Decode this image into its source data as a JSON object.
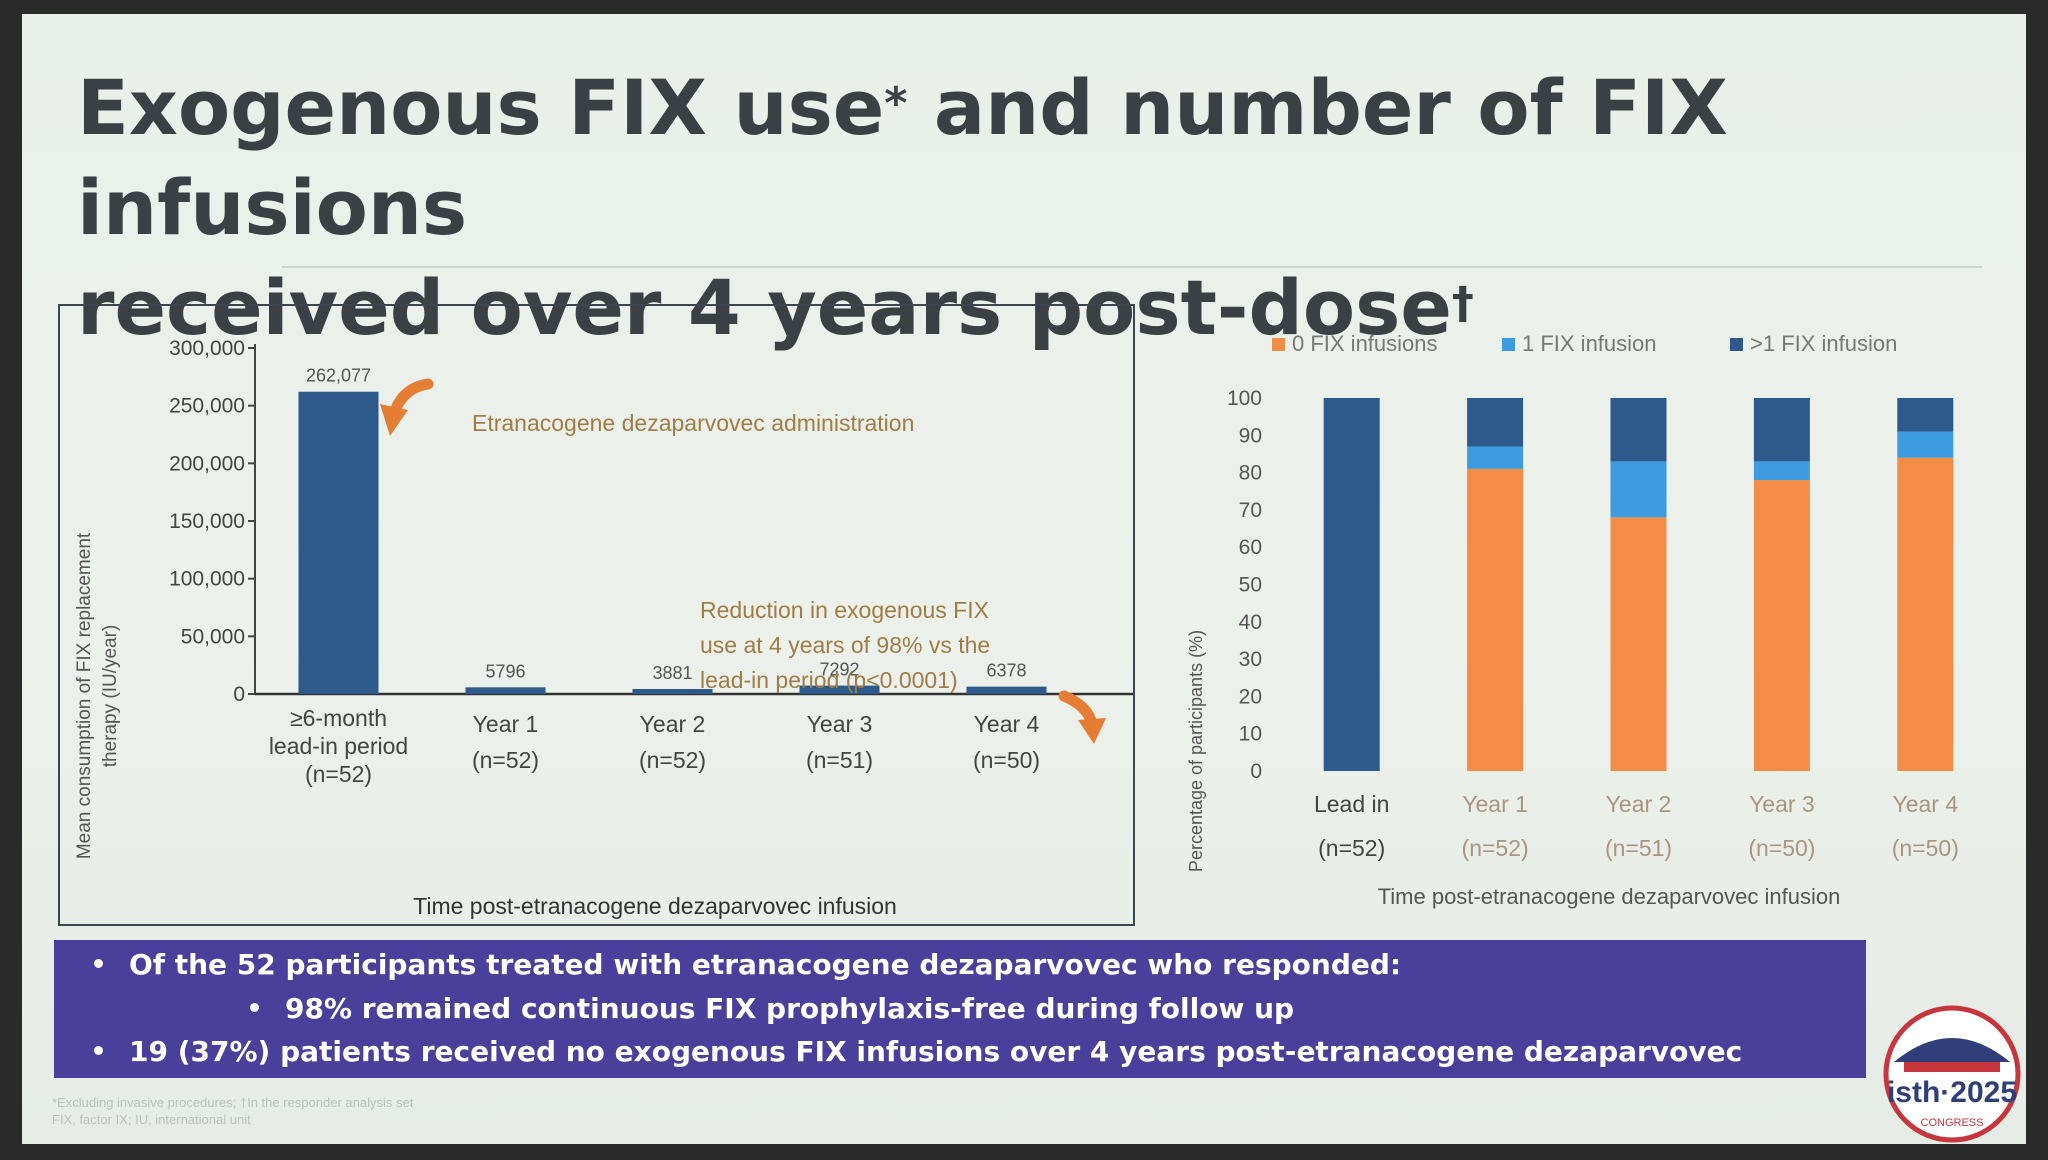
{
  "title": {
    "line1": "Exogenous FIX use",
    "line1_mark": "*",
    "line1_rest": " and number of FIX infusions",
    "line2": "received over 4 years post-dose",
    "line2_mark": "†"
  },
  "colors": {
    "dark_blue": "#2d5a8a",
    "light_blue": "#3d9be0",
    "orange": "#f28c47",
    "callout_bg": "#4a3f9a",
    "annotation_arrow": "#e57e34"
  },
  "chart_data": [
    {
      "type": "bar",
      "title": "",
      "xlabel": "Time post-etranacogene dezaparvovec infusion",
      "ylabel": "Mean consumption of FIX replacement therapy (IU/year)",
      "ylim": [
        0,
        300000
      ],
      "yticks": [
        "0",
        "50,000",
        "100,000",
        "150,000",
        "200,000",
        "250,000",
        "300,000"
      ],
      "categories": [
        [
          "≥6-month",
          "lead-in period",
          "(n=52)"
        ],
        [
          "Year 1",
          "(n=52)"
        ],
        [
          "Year 2",
          "(n=52)"
        ],
        [
          "Year 3",
          "(n=51)"
        ],
        [
          "Year 4",
          "(n=50)"
        ]
      ],
      "values": [
        262077,
        5796,
        3881,
        7292,
        6378
      ],
      "value_labels": [
        "262,077",
        "5796",
        "3881",
        "7292",
        "6378"
      ],
      "annotations": [
        "Etranacogene dezaparvovec administration",
        [
          "Reduction in exogenous FIX",
          "use at 4 years of 98% vs the",
          "lead-in period (p<0.0001)"
        ]
      ]
    },
    {
      "type": "bar",
      "stacked": true,
      "title": "",
      "xlabel": "Time post-etranacogene dezaparvovec infusion",
      "ylabel": "Percentage of participants (%)",
      "ylim": [
        0,
        100
      ],
      "yticks": [
        "0",
        "10",
        "20",
        "30",
        "40",
        "50",
        "60",
        "70",
        "80",
        "90",
        "100"
      ],
      "legend_position": "top",
      "categories": [
        [
          "Lead in",
          "(n=52)"
        ],
        [
          "Year 1",
          "(n=52)"
        ],
        [
          "Year 2",
          "(n=51)"
        ],
        [
          "Year 3",
          "(n=50)"
        ],
        [
          "Year 4",
          "(n=50)"
        ]
      ],
      "series": [
        {
          "name": "0 FIX infusions",
          "color": "#f28c47",
          "values": [
            0,
            81,
            68,
            78,
            84
          ]
        },
        {
          "name": "1 FIX infusion",
          "color": "#3d9be0",
          "values": [
            0,
            6,
            15,
            5,
            7
          ]
        },
        {
          "name": ">1 FIX infusion",
          "color": "#2d5a8a",
          "values": [
            100,
            13,
            17,
            17,
            9
          ]
        }
      ]
    }
  ],
  "callout": {
    "b1": "Of the 52 participants treated with etranacogene dezaparvovec who responded:",
    "b2": "98% remained continuous FIX prophylaxis-free during follow up",
    "b3": "19 (37%) patients received no exogenous FIX infusions over 4 years post-etranacogene dezaparvovec"
  },
  "footnotes": {
    "line1": "*Excluding invasive procedures; †In the responder analysis set",
    "line2": "FIX, factor IX; IU, international unit"
  },
  "logo": {
    "text": "isth·2025",
    "sub": "CONGRESS"
  }
}
